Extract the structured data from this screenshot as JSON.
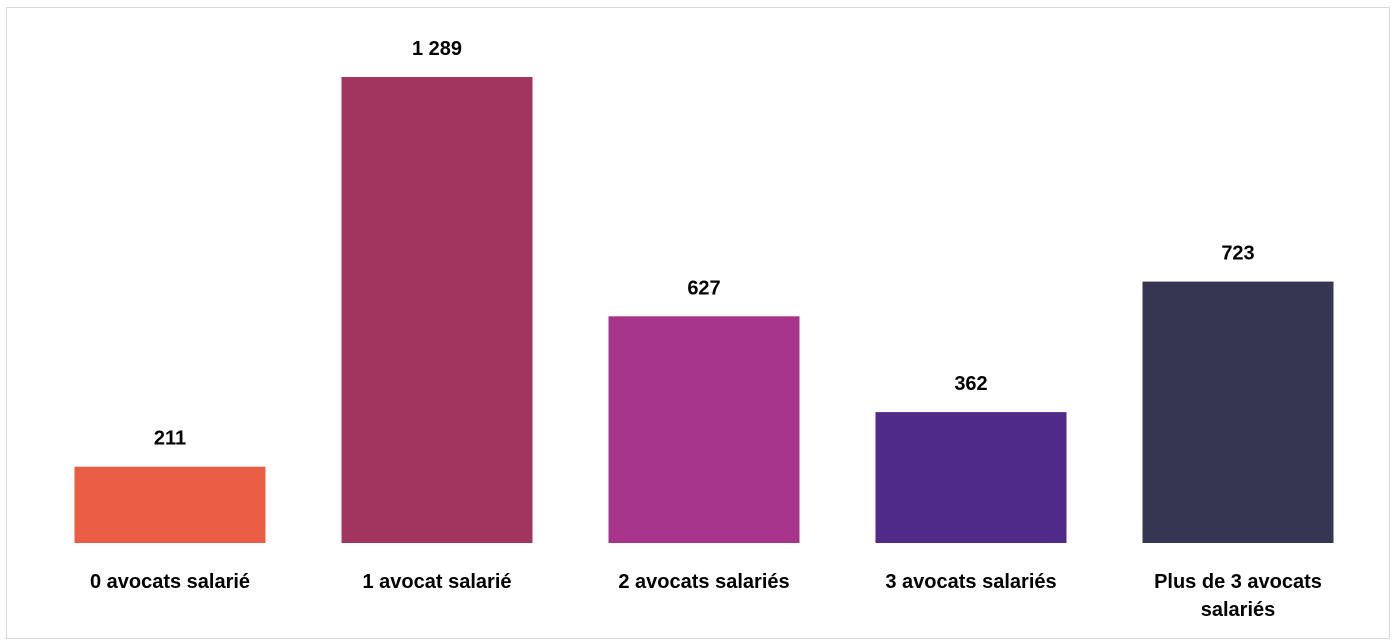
{
  "chart_data": {
    "type": "bar",
    "categories": [
      [
        "0 avocats salarié"
      ],
      [
        "1 avocat salarié"
      ],
      [
        "2 avocats salariés"
      ],
      [
        "3 avocats salariés"
      ],
      [
        "Plus de 3 avocats",
        "salariés"
      ]
    ],
    "values": [
      211,
      1289,
      627,
      362,
      723
    ],
    "value_labels": [
      "211",
      "1 289",
      "627",
      "362",
      "723"
    ],
    "colors": [
      "#e95e44",
      "#a2355e",
      "#a6348b",
      "#502a89",
      "#363652"
    ],
    "title": "",
    "xlabel": "",
    "ylabel": "",
    "ylim": [
      0,
      1400
    ],
    "grid": false,
    "legend": "none"
  }
}
